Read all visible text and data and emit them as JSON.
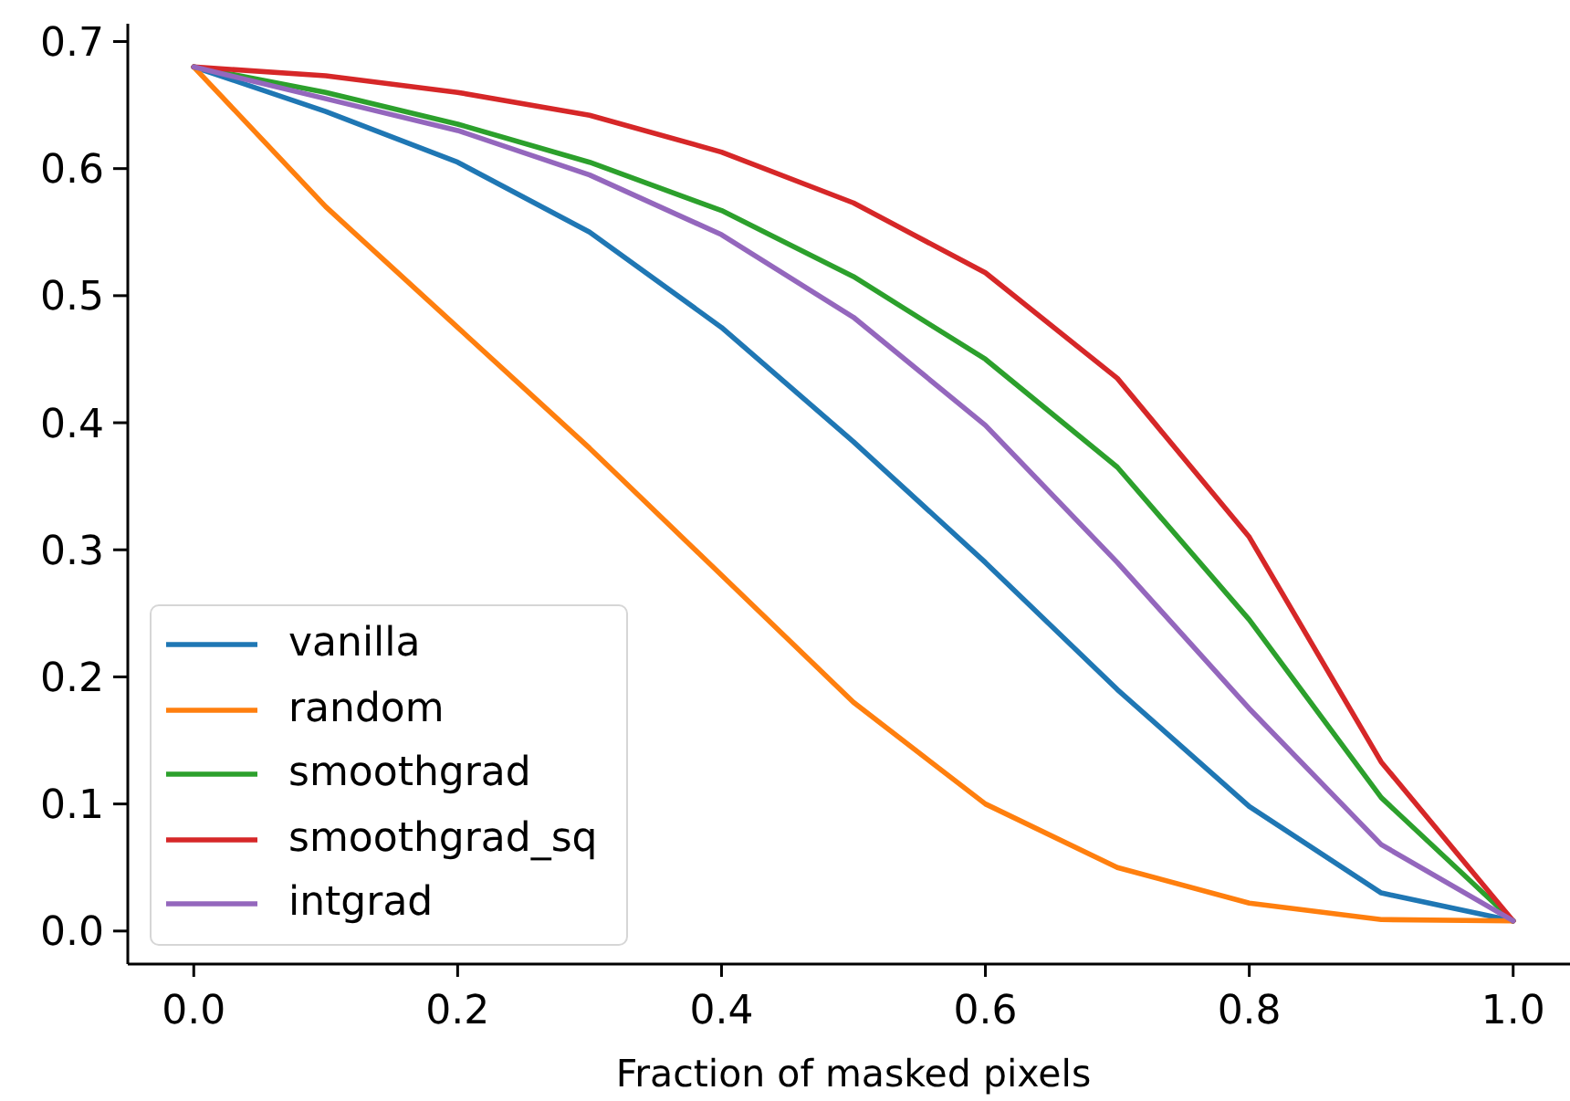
{
  "chart_data": {
    "type": "line",
    "xlabel": "Fraction of masked pixels",
    "x": [
      0,
      0.1,
      0.2,
      0.3,
      0.4,
      0.5,
      0.6,
      0.7,
      0.8,
      0.9,
      1.0
    ],
    "series": [
      {
        "name": "vanilla",
        "color": "#1f77b4",
        "values": [
          0.68,
          0.645,
          0.605,
          0.55,
          0.475,
          0.385,
          0.29,
          0.19,
          0.098,
          0.03,
          0.008
        ]
      },
      {
        "name": "random",
        "color": "#ff7f0e",
        "values": [
          0.68,
          0.57,
          0.475,
          0.38,
          0.28,
          0.18,
          0.1,
          0.05,
          0.022,
          0.009,
          0.008
        ]
      },
      {
        "name": "smoothgrad",
        "color": "#2ca02c",
        "values": [
          0.68,
          0.66,
          0.635,
          0.605,
          0.567,
          0.515,
          0.45,
          0.365,
          0.245,
          0.105,
          0.008
        ]
      },
      {
        "name": "smoothgrad_sq",
        "color": "#d62728",
        "values": [
          0.68,
          0.673,
          0.66,
          0.642,
          0.613,
          0.573,
          0.518,
          0.435,
          0.31,
          0.133,
          0.008
        ]
      },
      {
        "name": "intgrad",
        "color": "#9467bd",
        "values": [
          0.68,
          0.655,
          0.63,
          0.595,
          0.548,
          0.483,
          0.398,
          0.29,
          0.175,
          0.068,
          0.008
        ]
      }
    ],
    "xlim": [
      -0.05,
      1.05
    ],
    "xticks": [
      {
        "value": 0,
        "label": "0.0"
      },
      0.2,
      0.4,
      0.6,
      0.8,
      {
        "value": 1,
        "label": "1.0"
      }
    ],
    "ylim": [
      -0.026,
      0.714
    ],
    "yticks": [
      {
        "value": 0,
        "label": "0.0"
      },
      0.1,
      0.2,
      0.3,
      0.4,
      0.5,
      0.6,
      0.7
    ],
    "legend": "bottom left"
  }
}
